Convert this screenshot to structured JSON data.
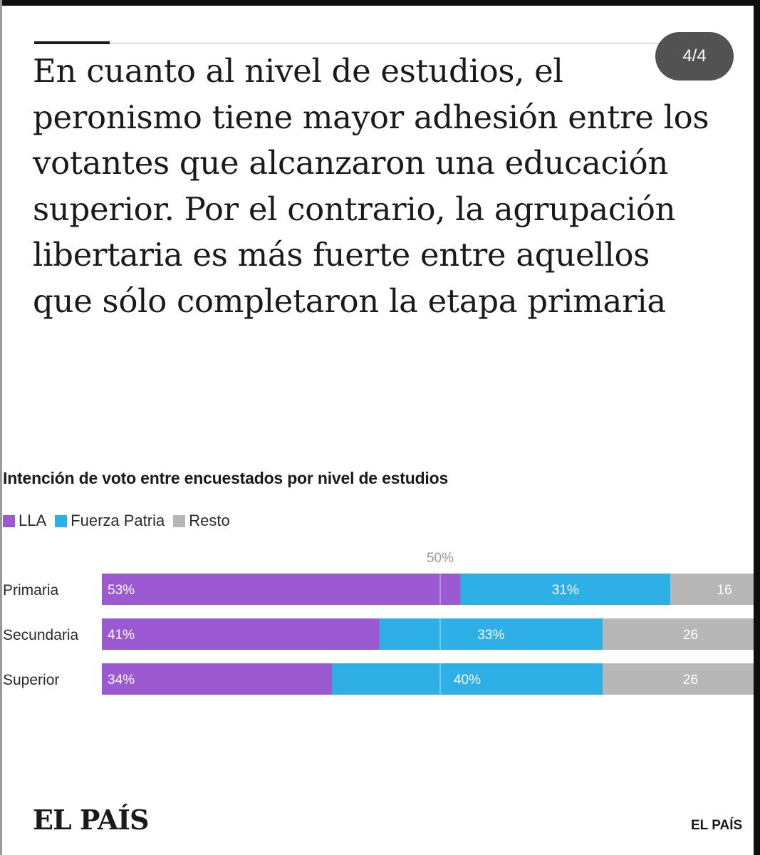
{
  "page_indicator": "4/4",
  "headline": "En cuanto al nivel de estudios, el peronismo tiene mayor adhesión entre los votantes que alcanzaron una educación superior. Por el contrario, la agrupación libertaria es más fuerte entre aquellos que sólo completaron la etapa primaria",
  "footer": {
    "logo": "EL PAÍS",
    "source": "EL PAÍS"
  },
  "colors": {
    "LLA": "#9b5ad2",
    "Fuerza Patria": "#2eb0e6",
    "Resto": "#b7b7b7"
  },
  "chart_data": {
    "type": "bar",
    "orientation": "horizontal",
    "stacked": true,
    "title": "Intención de voto entre encuestados por nivel de estudios",
    "categories": [
      "Primaria",
      "Secundaria",
      "Superior"
    ],
    "series": [
      {
        "name": "LLA",
        "values": [
          53,
          41,
          34
        ],
        "labels": [
          "53%",
          "41%",
          "34%"
        ]
      },
      {
        "name": "Fuerza Patria",
        "values": [
          31,
          33,
          40
        ],
        "labels": [
          "31%",
          "33%",
          "40%"
        ]
      },
      {
        "name": "Resto",
        "values": [
          16,
          26,
          26
        ],
        "labels": [
          "16",
          "26",
          "26"
        ]
      }
    ],
    "reference_line": {
      "value": 50,
      "label": "50%"
    },
    "xlim": [
      0,
      100
    ],
    "legend_position": "top-left",
    "grid": false
  }
}
